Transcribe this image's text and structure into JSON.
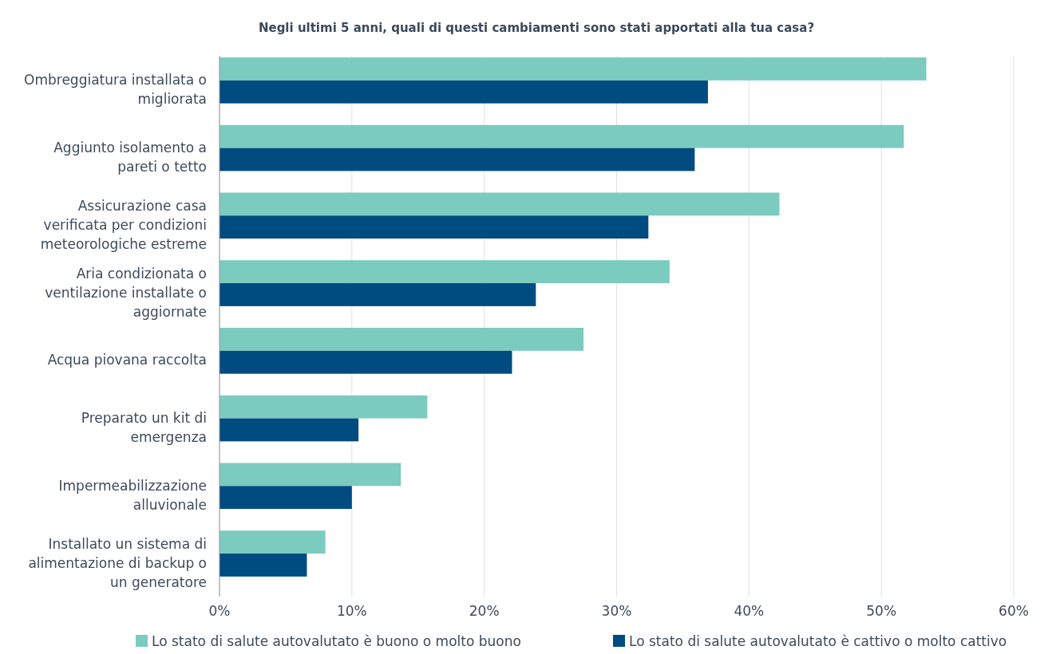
{
  "chart_data": {
    "type": "bar",
    "orientation": "horizontal",
    "title": "Negli ultimi 5 anni, quali di questi cambiamenti sono stati apportati alla tua casa?",
    "categories": [
      "Ombreggiatura installata o migliorata",
      "Aggiunto isolamento a pareti o tetto",
      "Assicurazione casa verificata per condizioni meteorologiche estreme",
      "Aria condizionata o ventilazione installate o aggiornate",
      "Acqua piovana raccolta",
      "Preparato un kit di emergenza",
      "Impermeabilizzazione alluvionale",
      "Installato un sistema di alimentazione di backup o un generatore"
    ],
    "series": [
      {
        "name": "Lo stato di salute autovalutato è buono o molto buono",
        "color": "#7ccbbf",
        "values": [
          53.4,
          51.7,
          42.3,
          34.0,
          27.5,
          15.7,
          13.7,
          8.0
        ]
      },
      {
        "name": "Lo stato di salute autovalutato è cattivo o molto cattivo",
        "color": "#004b7f",
        "values": [
          36.9,
          35.9,
          32.4,
          23.9,
          22.1,
          10.5,
          10.0,
          6.6
        ]
      }
    ],
    "xlim": [
      0,
      60
    ],
    "xticks": [
      {
        "value": 0,
        "label": "0%"
      },
      {
        "value": 10,
        "label": "10%"
      },
      {
        "value": 20,
        "label": "20%"
      },
      {
        "value": 30,
        "label": "30%"
      },
      {
        "value": 40,
        "label": "40%"
      },
      {
        "value": 50,
        "label": "50%"
      },
      {
        "value": 60,
        "label": "60%"
      }
    ],
    "grid": "x",
    "legend": "bottom"
  }
}
